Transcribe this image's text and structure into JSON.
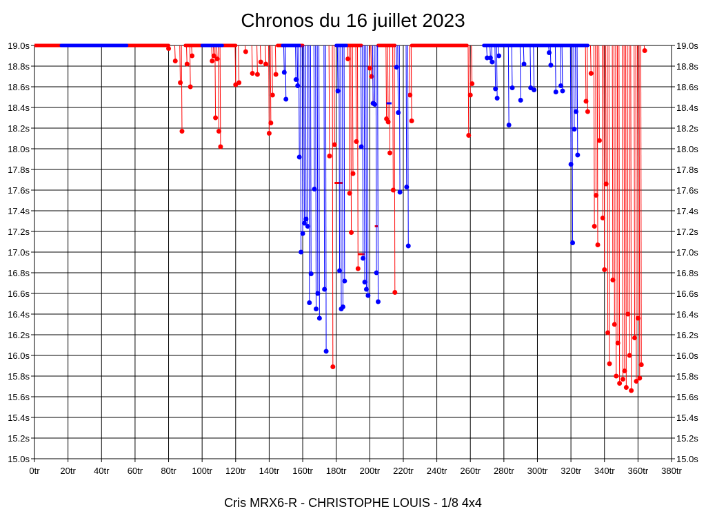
{
  "chart_data": {
    "type": "scatter",
    "title": "Chronos du 16 juillet 2023",
    "footer": "Cris MRX6-R - CHRISTOPHE LOUIS - 1/8 4x4",
    "xlim": [
      0,
      380
    ],
    "ylim": [
      15.0,
      19.0
    ],
    "grid": true,
    "x_ticks": [
      "0tr",
      "20tr",
      "40tr",
      "60tr",
      "80tr",
      "100tr",
      "120tr",
      "140tr",
      "160tr",
      "180tr",
      "200tr",
      "220tr",
      "240tr",
      "260tr",
      "280tr",
      "300tr",
      "320tr",
      "340tr",
      "360tr",
      "380tr"
    ],
    "y_ticks": [
      "19.0s",
      "18.8s",
      "18.6s",
      "18.4s",
      "18.2s",
      "18.0s",
      "17.8s",
      "17.6s",
      "17.4s",
      "17.2s",
      "17.0s",
      "16.8s",
      "16.6s",
      "16.4s",
      "16.2s",
      "16.0s",
      "15.8s",
      "15.6s",
      "15.4s",
      "15.2s",
      "15.0s"
    ],
    "series": [
      {
        "color": "#ff0000",
        "segments": [
          [
            0,
            16
          ],
          [
            55,
            80
          ],
          [
            90,
            100
          ],
          [
            112,
            120
          ],
          [
            145,
            160
          ],
          [
            185,
            195
          ],
          [
            205,
            215
          ],
          [
            225,
            258
          ],
          [
            322,
            330
          ]
        ],
        "values": [
          [
            80,
            18.97
          ],
          [
            84,
            18.85
          ],
          [
            87,
            18.64
          ],
          [
            88,
            18.17
          ],
          [
            91,
            18.82
          ],
          [
            93,
            18.6
          ],
          [
            94,
            18.9
          ],
          [
            106,
            18.85
          ],
          [
            107,
            18.9
          ],
          [
            108,
            18.3
          ],
          [
            109,
            18.87
          ],
          [
            110,
            18.17
          ],
          [
            111,
            18.02
          ],
          [
            120,
            18.62
          ],
          [
            122,
            18.64
          ],
          [
            126,
            18.94
          ],
          [
            130,
            18.73
          ],
          [
            133,
            18.72
          ],
          [
            135,
            18.84
          ],
          [
            138,
            18.82
          ],
          [
            140,
            18.15
          ],
          [
            141,
            18.25
          ],
          [
            142,
            18.52
          ],
          [
            144,
            18.72
          ],
          [
            176,
            17.93
          ],
          [
            178,
            15.89
          ],
          [
            179,
            18.04
          ],
          [
            187,
            18.87
          ],
          [
            188,
            17.57
          ],
          [
            189,
            17.19
          ],
          [
            190,
            17.76
          ],
          [
            192,
            18.07
          ],
          [
            193,
            16.84
          ],
          [
            200,
            18.78
          ],
          [
            201,
            18.7
          ],
          [
            202,
            18.44
          ],
          [
            210,
            18.29
          ],
          [
            211,
            18.26
          ],
          [
            212,
            17.96
          ],
          [
            214,
            17.6
          ],
          [
            215,
            16.61
          ],
          [
            224,
            18.52
          ],
          [
            225,
            18.27
          ],
          [
            259,
            18.13
          ],
          [
            260,
            18.52
          ],
          [
            261,
            18.63
          ],
          [
            329,
            18.46
          ],
          [
            330,
            18.36
          ],
          [
            332,
            18.73
          ],
          [
            334,
            17.25
          ],
          [
            335,
            17.55
          ],
          [
            336,
            17.07
          ],
          [
            337,
            18.08
          ],
          [
            339,
            17.33
          ],
          [
            340,
            16.83
          ],
          [
            341,
            17.66
          ],
          [
            342,
            16.22
          ],
          [
            343,
            15.92
          ],
          [
            345,
            16.73
          ],
          [
            346,
            16.3
          ],
          [
            347,
            15.8
          ],
          [
            348,
            16.12
          ],
          [
            349,
            15.73
          ],
          [
            351,
            15.77
          ],
          [
            352,
            15.85
          ],
          [
            353,
            15.69
          ],
          [
            354,
            16.4
          ],
          [
            355,
            16.0
          ],
          [
            356,
            15.66
          ],
          [
            358,
            16.17
          ],
          [
            359,
            15.75
          ],
          [
            360,
            16.36
          ],
          [
            361,
            15.78
          ],
          [
            362,
            15.91
          ],
          [
            364,
            18.95
          ]
        ],
        "dashes": [
          [
            179,
            184,
            17.67
          ],
          [
            193,
            197,
            16.98
          ],
          [
            203,
            205,
            17.25
          ]
        ]
      },
      {
        "color": "#0000ff",
        "segments": [
          [
            16,
            55
          ],
          [
            100,
            112
          ],
          [
            148,
            158
          ],
          [
            180,
            186
          ],
          [
            268,
            330
          ]
        ],
        "values": [
          [
            149,
            18.74
          ],
          [
            150,
            18.48
          ],
          [
            156,
            18.67
          ],
          [
            157,
            18.61
          ],
          [
            158,
            17.92
          ],
          [
            159,
            17.0
          ],
          [
            160,
            17.18
          ],
          [
            161,
            17.28
          ],
          [
            162,
            17.32
          ],
          [
            163,
            17.25
          ],
          [
            164,
            16.51
          ],
          [
            165,
            16.79
          ],
          [
            167,
            17.61
          ],
          [
            168,
            16.45
          ],
          [
            169,
            16.6
          ],
          [
            170,
            16.36
          ],
          [
            173,
            16.64
          ],
          [
            174,
            16.04
          ],
          [
            181,
            18.56
          ],
          [
            182,
            16.82
          ],
          [
            183,
            16.45
          ],
          [
            184,
            16.47
          ],
          [
            185,
            16.72
          ],
          [
            195,
            18.02
          ],
          [
            196,
            16.94
          ],
          [
            197,
            16.71
          ],
          [
            198,
            16.64
          ],
          [
            199,
            16.58
          ],
          [
            202,
            18.44
          ],
          [
            203,
            18.43
          ],
          [
            204,
            16.8
          ],
          [
            205,
            16.52
          ],
          [
            216,
            18.79
          ],
          [
            217,
            18.35
          ],
          [
            218,
            17.58
          ],
          [
            222,
            17.63
          ],
          [
            223,
            17.06
          ],
          [
            270,
            18.88
          ],
          [
            272,
            18.88
          ],
          [
            273,
            18.84
          ],
          [
            275,
            18.58
          ],
          [
            276,
            18.49
          ],
          [
            277,
            18.9
          ],
          [
            283,
            18.23
          ],
          [
            285,
            18.59
          ],
          [
            290,
            18.47
          ],
          [
            292,
            18.82
          ],
          [
            296,
            18.59
          ],
          [
            298,
            18.57
          ],
          [
            307,
            18.93
          ],
          [
            308,
            18.81
          ],
          [
            311,
            18.55
          ],
          [
            314,
            18.61
          ],
          [
            315,
            18.56
          ],
          [
            320,
            17.85
          ],
          [
            321,
            17.09
          ],
          [
            322,
            18.19
          ],
          [
            323,
            18.36
          ],
          [
            324,
            17.94
          ]
        ],
        "dashes": [
          [
            210,
            213,
            18.44
          ]
        ]
      }
    ]
  }
}
